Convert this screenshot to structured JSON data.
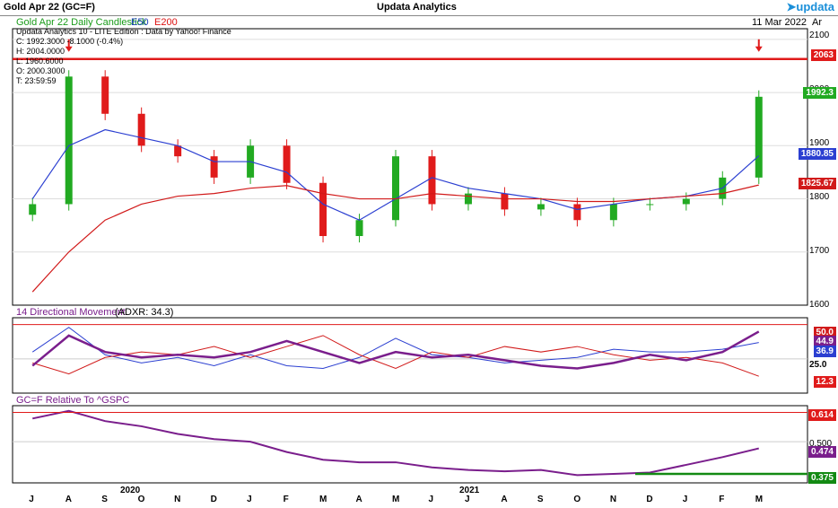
{
  "header": {
    "symbol_title": "Gold Apr 22 (GC=F)",
    "app_title": "Updata Analytics",
    "logo": "updata",
    "date": "11 Mar 2022",
    "axis_corner": "Ar"
  },
  "price_panel": {
    "legend_name": "Gold Apr 22 Daily Candlestick",
    "legend_e50": "E50",
    "legend_e200": "E200",
    "edition": "Updata Analytics 10 - LITE Edition : Data by Yahoo! Finance",
    "ohlc": [
      "C: 1992.3000  -8.1000 (-0.4%)",
      "H: 2004.0000",
      "L: 1960.6000",
      "O: 2000.3000",
      "T: 23:59:59"
    ],
    "y_ticks": [
      "2100",
      "2000",
      "1900",
      "1800",
      "1700",
      "1600"
    ],
    "resistance_level": 2063,
    "tags": {
      "resistance": "2063",
      "close": "1992.3",
      "e50": "1880.85",
      "e200": "1825.67"
    }
  },
  "dmi_panel": {
    "title": "14 Directional Movement",
    "adxr": "(ADXR: 34.3)",
    "y_ticks": [
      "25.0"
    ],
    "tags": {
      "upper": "50.0",
      "adx": "44.9",
      "di_plus": "36.9",
      "di_minus": "12.3"
    }
  },
  "rel_panel": {
    "title": "GC=F Relative To ^GSPC",
    "y_ticks": [
      "0.500"
    ],
    "tags": {
      "top": "0.614",
      "current": "0.474",
      "bottom": "0.375"
    }
  },
  "x_axis": {
    "months": [
      "J",
      "A",
      "S",
      "O",
      "N",
      "D",
      "J",
      "F",
      "M",
      "A",
      "M",
      "J",
      "J",
      "A",
      "S",
      "O",
      "N",
      "D",
      "J",
      "F",
      "M"
    ],
    "years": [
      "2020",
      "2021"
    ]
  },
  "colors": {
    "up": "#22aa22",
    "down": "#e01b1b",
    "e50": "#2b3fd1",
    "e200": "#d11a1a",
    "adx": "#7a1e8c",
    "support": "#138a13"
  },
  "chart_data": [
    {
      "type": "candlestick",
      "title": "Gold Apr 22 Daily Candlestick",
      "x": [
        "Jul 2020",
        "Aug 2020",
        "Sep 2020",
        "Oct 2020",
        "Nov 2020",
        "Dec 2020",
        "Jan 2021",
        "Feb 2021",
        "Mar 2021",
        "Apr 2021",
        "May 2021",
        "Jun 2021",
        "Jul 2021",
        "Aug 2021",
        "Sep 2021",
        "Oct 2021",
        "Nov 2021",
        "Dec 2021",
        "Jan 2022",
        "Feb 2022",
        "Mar 2022"
      ],
      "close": [
        1790,
        2030,
        1960,
        1900,
        1880,
        1840,
        1900,
        1830,
        1730,
        1760,
        1880,
        1790,
        1810,
        1780,
        1790,
        1760,
        1790,
        1790,
        1800,
        1840,
        1992
      ],
      "series": [
        {
          "name": "E50",
          "values": [
            1800,
            1900,
            1930,
            1915,
            1900,
            1870,
            1870,
            1850,
            1790,
            1760,
            1800,
            1840,
            1820,
            1810,
            1800,
            1780,
            1790,
            1800,
            1805,
            1820,
            1881
          ]
        },
        {
          "name": "E200",
          "values": [
            1625,
            1700,
            1760,
            1790,
            1805,
            1810,
            1820,
            1825,
            1810,
            1800,
            1800,
            1810,
            1805,
            1800,
            1800,
            1795,
            1795,
            1800,
            1805,
            1810,
            1826
          ]
        }
      ],
      "ylim": [
        1600,
        2120
      ],
      "hlines": [
        2063
      ]
    },
    {
      "type": "line",
      "title": "14 Directional Movement",
      "series": [
        {
          "name": "ADX",
          "values": [
            20,
            42,
            30,
            26,
            28,
            26,
            30,
            38,
            30,
            22,
            30,
            26,
            28,
            24,
            20,
            18,
            22,
            28,
            24,
            30,
            44.9
          ]
        },
        {
          "name": "DI+",
          "values": [
            30,
            48,
            28,
            22,
            26,
            20,
            28,
            20,
            18,
            26,
            40,
            28,
            26,
            22,
            24,
            26,
            32,
            30,
            30,
            32,
            36.9
          ]
        },
        {
          "name": "DI-",
          "values": [
            22,
            14,
            26,
            30,
            28,
            34,
            26,
            34,
            42,
            28,
            18,
            30,
            26,
            34,
            30,
            34,
            28,
            24,
            26,
            22,
            12.3
          ]
        }
      ],
      "ylim": [
        0,
        55
      ],
      "hlines": [
        50
      ]
    },
    {
      "type": "line",
      "title": "GC=F Relative To ^GSPC",
      "series": [
        {
          "name": "GC=F/^GSPC",
          "values": [
            0.59,
            0.62,
            0.58,
            0.56,
            0.53,
            0.51,
            0.5,
            0.46,
            0.43,
            0.42,
            0.42,
            0.4,
            0.39,
            0.385,
            0.39,
            0.37,
            0.375,
            0.38,
            0.41,
            0.44,
            0.474
          ]
        }
      ],
      "ylim": [
        0.34,
        0.64
      ],
      "hlines": [
        0.614,
        0.375
      ]
    }
  ]
}
